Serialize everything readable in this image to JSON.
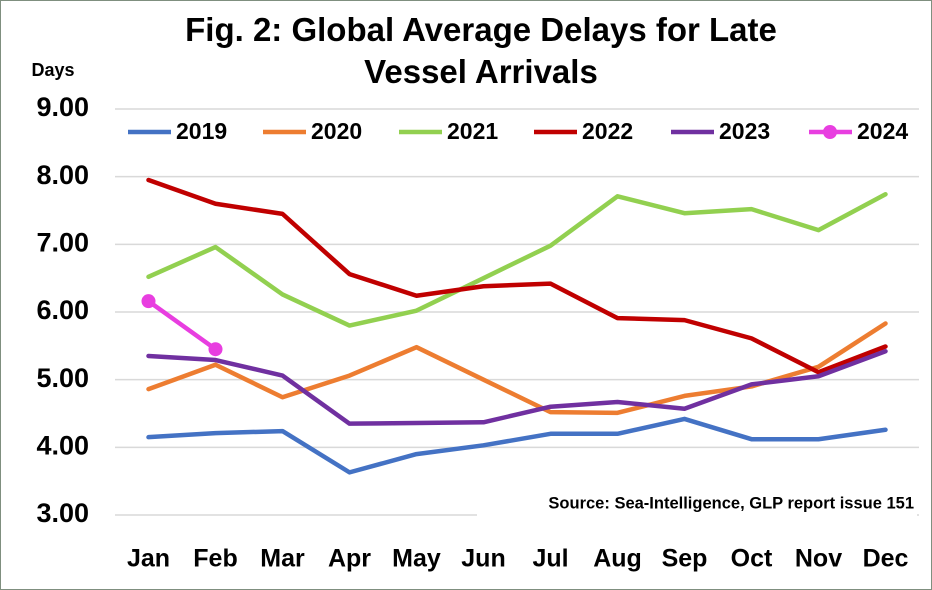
{
  "chart_data": {
    "type": "line",
    "title": "Fig. 2: Global Average Delays for Late Vessel Arrivals",
    "y_label": "Days",
    "annotation": "Source: Sea-Intelligence, GLP report issue 151",
    "categories": [
      "Jan",
      "Feb",
      "Mar",
      "Apr",
      "May",
      "Jun",
      "Jul",
      "Aug",
      "Sep",
      "Oct",
      "Nov",
      "Dec"
    ],
    "series": [
      {
        "name": "2019",
        "color": "#4472c4",
        "values": [
          4.15,
          4.21,
          4.24,
          3.63,
          3.9,
          4.03,
          4.2,
          4.2,
          4.42,
          4.12,
          4.12,
          4.26
        ]
      },
      {
        "name": "2020",
        "color": "#ed7d31",
        "values": [
          4.86,
          5.22,
          4.74,
          5.06,
          5.48,
          5.0,
          4.52,
          4.51,
          4.76,
          4.9,
          5.19,
          5.83
        ]
      },
      {
        "name": "2021",
        "color": "#92d050",
        "values": [
          6.52,
          6.96,
          6.26,
          5.8,
          6.02,
          6.5,
          6.98,
          7.71,
          7.46,
          7.52,
          7.21,
          7.74
        ]
      },
      {
        "name": "2022",
        "color": "#c00000",
        "values": [
          7.95,
          7.6,
          7.45,
          6.56,
          6.24,
          6.38,
          6.42,
          5.91,
          5.88,
          5.61,
          5.11,
          5.49
        ]
      },
      {
        "name": "2023",
        "color": "#7030a0",
        "values": [
          5.35,
          5.29,
          5.06,
          4.35,
          4.36,
          4.37,
          4.6,
          4.67,
          4.57,
          4.93,
          5.05,
          5.42
        ]
      },
      {
        "name": "2024",
        "color": "#e83ee0",
        "markers": true,
        "values": [
          6.16,
          5.45,
          null,
          null,
          null,
          null,
          null,
          null,
          null,
          null,
          null,
          null
        ]
      }
    ],
    "ylim": [
      3,
      9
    ],
    "yticks": [
      {
        "value": 3,
        "label": "3.00"
      },
      {
        "value": 4,
        "label": "4.00"
      },
      {
        "value": 5,
        "label": "5.00"
      },
      {
        "value": 6,
        "label": "6.00"
      },
      {
        "value": 7,
        "label": "7.00"
      },
      {
        "value": 8,
        "label": "8.00"
      },
      {
        "value": 9,
        "label": "9.00"
      }
    ],
    "grid": true,
    "legend": "top"
  }
}
